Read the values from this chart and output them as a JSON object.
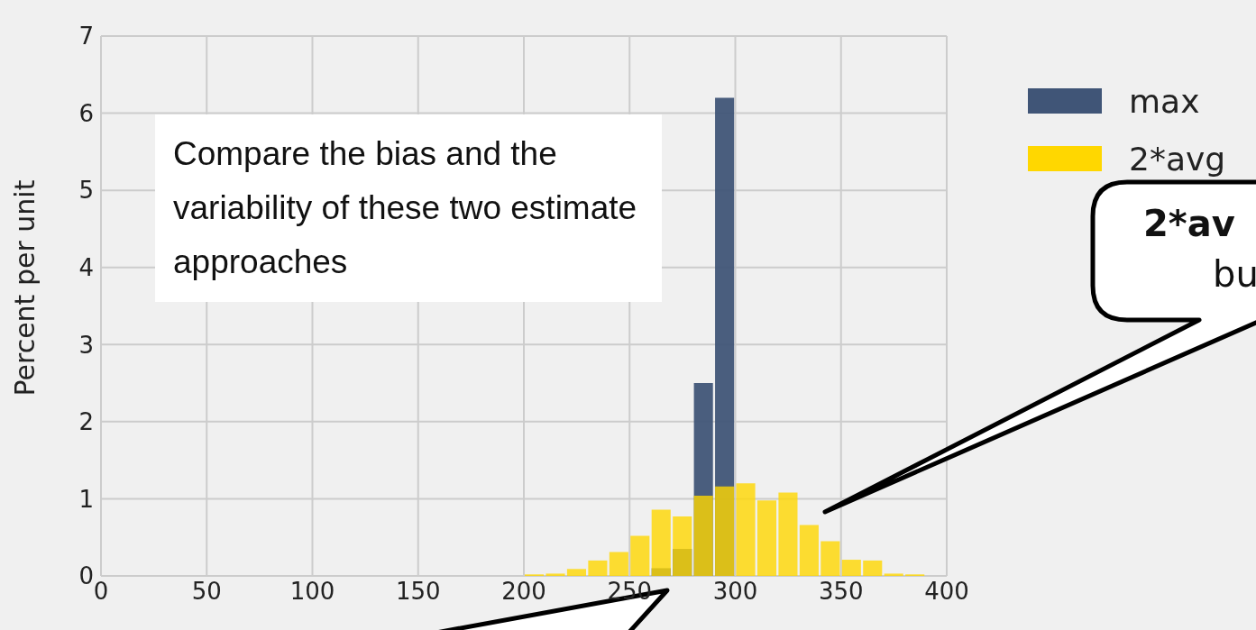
{
  "chart_data": {
    "type": "histogram",
    "ylabel": "Percent per unit",
    "bins": [
      200,
      210,
      220,
      230,
      240,
      250,
      260,
      270,
      280,
      290,
      300,
      310,
      320,
      330,
      340,
      350,
      360,
      370,
      380,
      390
    ],
    "series": [
      {
        "name": "max",
        "color": "#405577",
        "values": [
          null,
          null,
          null,
          null,
          null,
          null,
          0.1,
          0.35,
          2.5,
          6.2,
          null,
          null,
          null,
          null,
          null,
          null,
          null,
          null,
          null
        ]
      },
      {
        "name": "2*avg",
        "color": "#ffd700",
        "values": [
          0.02,
          0.03,
          0.09,
          0.2,
          0.31,
          0.52,
          0.86,
          0.77,
          1.04,
          1.16,
          1.2,
          0.98,
          1.08,
          0.66,
          0.45,
          0.21,
          0.2,
          0.03,
          0.02
        ]
      }
    ],
    "xlim": [
      0,
      400
    ],
    "xticks": [
      0,
      50,
      100,
      150,
      200,
      250,
      300,
      350,
      400
    ],
    "ylim": [
      0,
      7
    ],
    "yticks": [
      0,
      1,
      2,
      3,
      4,
      5,
      6,
      7
    ],
    "grid": true,
    "legend": "top right",
    "annotations": [
      "Compare the bias and the variability of these two estimate approaches",
      "2*av",
      "bu"
    ]
  }
}
